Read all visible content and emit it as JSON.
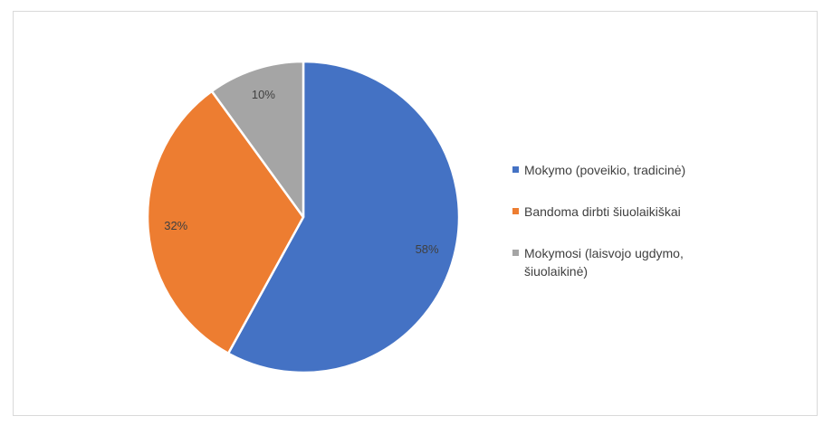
{
  "chart_data": {
    "type": "pie",
    "title": "",
    "categories": [
      "Mokymo (poveikio, tradicinė)",
      "Bandoma dirbti šiuolaikiškai",
      "Mokymosi (laisvojo ugdymo, šiuolaikinė)"
    ],
    "values": [
      58,
      32,
      10
    ],
    "data_labels": [
      "58%",
      "32%",
      "10%"
    ],
    "colors": [
      "#4472c4",
      "#ed7d31",
      "#a5a5a5"
    ],
    "start_angle_deg": 0,
    "direction": "clockwise",
    "legend_position": "right"
  }
}
